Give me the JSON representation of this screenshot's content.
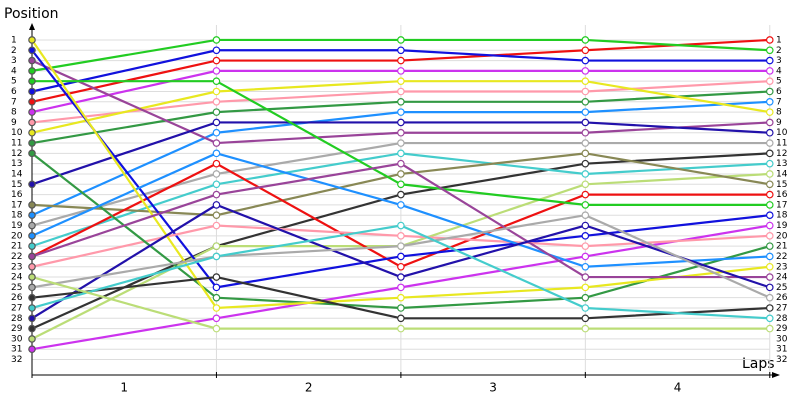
{
  "chart_data": {
    "type": "line",
    "y_label": "Position",
    "x_label": "Laps",
    "x": [
      0,
      1,
      2,
      3,
      4
    ],
    "xlim": [
      0,
      4.05
    ],
    "xticks": [
      {
        "value": 0.5,
        "label": "1"
      },
      {
        "value": 1.5,
        "label": "2"
      },
      {
        "value": 2.5,
        "label": "3"
      },
      {
        "value": 3.5,
        "label": "4"
      }
    ],
    "ylim": [
      33.5,
      -0.45
    ],
    "yticks": [
      1,
      2,
      3,
      4,
      5,
      6,
      7,
      8,
      9,
      10,
      11,
      12,
      13,
      14,
      15,
      16,
      17,
      18,
      19,
      20,
      21,
      22,
      23,
      24,
      25,
      26,
      27,
      28,
      29,
      30,
      31,
      32
    ],
    "grid": true,
    "series": [
      {
        "color": "#ee1111",
        "values": [
          7,
          3,
          3,
          2,
          1
        ]
      },
      {
        "color": "#22cc22",
        "values": [
          4,
          1,
          1,
          1,
          2
        ]
      },
      {
        "color": "#1111dd",
        "values": [
          6,
          2,
          2,
          3,
          3
        ]
      },
      {
        "color": "#cc33ee",
        "values": [
          8,
          4,
          4,
          4,
          4
        ]
      },
      {
        "color": "#ff99aa",
        "values": [
          9,
          7,
          6,
          6,
          5
        ]
      },
      {
        "color": "#339944",
        "values": [
          11,
          8,
          7,
          7,
          6
        ]
      },
      {
        "color": "#1e90ff",
        "values": [
          18,
          10,
          8,
          8,
          7
        ]
      },
      {
        "color": "#e8e820",
        "values": [
          10,
          6,
          5,
          5,
          8
        ]
      },
      {
        "color": "#994499",
        "values": [
          3,
          11,
          10,
          10,
          9
        ]
      },
      {
        "color": "#2211aa",
        "values": [
          15,
          9,
          9,
          9,
          10
        ]
      },
      {
        "color": "#aaaaaa",
        "values": [
          19,
          14,
          11,
          11,
          11
        ]
      },
      {
        "color": "#333333",
        "values": [
          29,
          21,
          16,
          13,
          12
        ]
      },
      {
        "color": "#44cccc",
        "values": [
          21,
          15,
          12,
          14,
          13
        ]
      },
      {
        "color": "#bbdd77",
        "values": [
          30,
          21,
          21,
          15,
          14
        ]
      },
      {
        "color": "#888855",
        "values": [
          17,
          18,
          14,
          12,
          15
        ]
      },
      {
        "color": "#ee1111",
        "values": [
          22,
          13,
          23,
          16,
          16
        ]
      },
      {
        "color": "#22cc22",
        "values": [
          5,
          5,
          15,
          17,
          17
        ]
      },
      {
        "color": "#1111dd",
        "values": [
          2,
          25,
          22,
          20,
          18
        ]
      },
      {
        "color": "#cc33ee",
        "values": [
          31,
          28,
          25,
          22,
          19
        ]
      },
      {
        "color": "#ff99aa",
        "values": [
          23,
          19,
          20,
          21,
          20
        ]
      },
      {
        "color": "#339944",
        "values": [
          12,
          26,
          27,
          26,
          21
        ]
      },
      {
        "color": "#1e90ff",
        "values": [
          20,
          12,
          17,
          23,
          22
        ]
      },
      {
        "color": "#e8e820",
        "values": [
          1,
          27,
          26,
          25,
          23
        ]
      },
      {
        "color": "#994499",
        "values": [
          22,
          16,
          13,
          24,
          24
        ]
      },
      {
        "color": "#2211aa",
        "values": [
          28,
          17,
          24,
          19,
          25
        ]
      },
      {
        "color": "#aaaaaa",
        "values": [
          25,
          22,
          21,
          18,
          26
        ]
      },
      {
        "color": "#333333",
        "values": [
          26,
          24,
          28,
          28,
          27
        ]
      },
      {
        "color": "#44cccc",
        "values": [
          27,
          22,
          19,
          27,
          28
        ]
      },
      {
        "color": "#bbdd77",
        "values": [
          24,
          29,
          29,
          29,
          29
        ]
      }
    ]
  }
}
